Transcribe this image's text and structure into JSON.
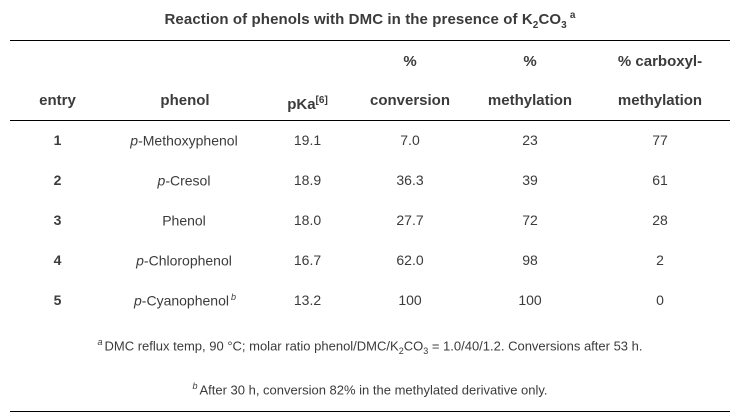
{
  "title": {
    "part1": "Reaction of phenols with DMC in the presence of K",
    "sub1": "2",
    "part2": "CO",
    "sub2": "3",
    "note": "a"
  },
  "headers": {
    "entry": "entry",
    "phenol": "phenol",
    "pka_base": "pKa",
    "pka_sup": "[6]",
    "conversion_line1": "%",
    "conversion_line2": "conversion",
    "methylation_line1": "%",
    "methylation_line2": "methylation",
    "carboxyl_line1": "% carboxyl-",
    "carboxyl_line2": "methylation"
  },
  "rows": [
    {
      "entry": "1",
      "phenol_prefix": "p",
      "phenol_name": "-Methoxyphenol",
      "phenol_note": "",
      "pka": "19.1",
      "conversion": "7.0",
      "methylation": "23",
      "carboxyl_methylation": "77"
    },
    {
      "entry": "2",
      "phenol_prefix": "p",
      "phenol_name": "-Cresol",
      "phenol_note": "",
      "pka": "18.9",
      "conversion": "36.3",
      "methylation": "39",
      "carboxyl_methylation": "61"
    },
    {
      "entry": "3",
      "phenol_prefix": "",
      "phenol_name": "Phenol",
      "phenol_note": "",
      "pka": "18.0",
      "conversion": "27.7",
      "methylation": "72",
      "carboxyl_methylation": "28"
    },
    {
      "entry": "4",
      "phenol_prefix": "p",
      "phenol_name": "-Chlorophenol",
      "phenol_note": "",
      "pka": "16.7",
      "conversion": "62.0",
      "methylation": "98",
      "carboxyl_methylation": "2"
    },
    {
      "entry": "5",
      "phenol_prefix": "p",
      "phenol_name": "-Cyanophenol",
      "phenol_note": "b",
      "pka": "13.2",
      "conversion": "100",
      "methylation": "100",
      "carboxyl_methylation": "0"
    }
  ],
  "footnotes": {
    "a": {
      "marker": "a",
      "part1": "DMC reflux temp, 90 °C; molar ratio phenol/DMC/K",
      "sub1": "2",
      "part2": "CO",
      "sub2": "3",
      "part3": " = 1.0/40/1.2. Conversions after 53 h."
    },
    "b": {
      "marker": "b",
      "text": "After 30 h, conversion 82% in the methylated derivative only."
    }
  },
  "colors": {
    "text": "#3b3b3b",
    "rule": "#000000",
    "background": "#ffffff"
  }
}
